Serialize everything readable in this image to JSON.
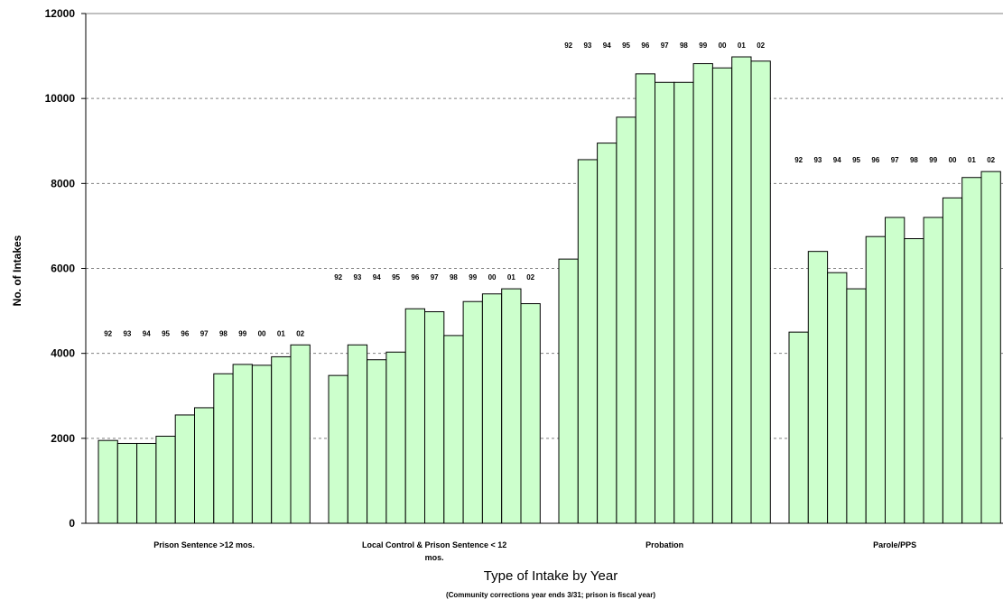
{
  "chart_data": {
    "type": "bar",
    "xlabel": "Type of Intake by Year",
    "subtitle": "(Community corrections year ends 3/31; prison is fiscal year)",
    "ylabel": "No. of Intakes",
    "ylim": [
      0,
      12000
    ],
    "yticks": [
      0,
      2000,
      4000,
      6000,
      8000,
      10000,
      12000
    ],
    "ytick_labels": [
      "0",
      "2000",
      "4000",
      "6000",
      "8000",
      "10000",
      "12000"
    ],
    "grid": "horizontal dashed",
    "colors": {
      "bar_fill": "#ccffcc",
      "bar_stroke": "#000000",
      "grid": "#808080"
    },
    "groups": [
      {
        "label_lines": [
          "Prison Sentence >12 mos."
        ],
        "years": [
          "92",
          "93",
          "94",
          "95",
          "96",
          "97",
          "98",
          "99",
          "00",
          "01",
          "02"
        ],
        "values": [
          1950,
          1880,
          1880,
          2050,
          2550,
          2720,
          3520,
          3740,
          3720,
          3920,
          4200
        ]
      },
      {
        "label_lines": [
          "Local Control & Prison Sentence < 12",
          "mos."
        ],
        "years": [
          "92",
          "93",
          "94",
          "95",
          "96",
          "97",
          "98",
          "99",
          "00",
          "01",
          "02"
        ],
        "values": [
          3480,
          4200,
          3850,
          4030,
          5050,
          4980,
          4420,
          5220,
          5400,
          5520,
          5170
        ]
      },
      {
        "label_lines": [
          "Probation"
        ],
        "years": [
          "92",
          "93",
          "94",
          "95",
          "96",
          "97",
          "98",
          "99",
          "00",
          "01",
          "02"
        ],
        "values": [
          6220,
          8560,
          8950,
          9560,
          10580,
          10380,
          10380,
          10820,
          10720,
          10980,
          10880
        ]
      },
      {
        "label_lines": [
          "Parole/PPS"
        ],
        "years": [
          "92",
          "93",
          "94",
          "95",
          "96",
          "97",
          "98",
          "99",
          "00",
          "01",
          "02"
        ],
        "values": [
          4500,
          6400,
          5900,
          5520,
          6750,
          7200,
          6700,
          7200,
          7660,
          8140,
          8280
        ]
      }
    ]
  }
}
